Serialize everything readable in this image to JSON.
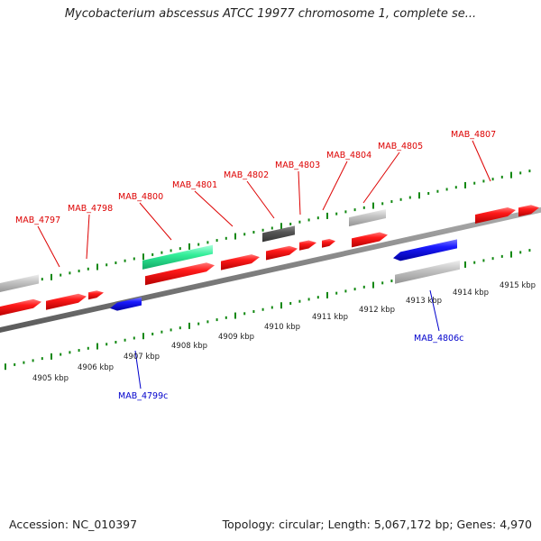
{
  "title": "Mycobacterium abscessus ATCC 19977 chromosome 1, complete se...",
  "footer": {
    "accession": "Accession: NC_010397",
    "topology": "Topology: circular; Length: 5,067,172 bp; Genes: 4,970"
  },
  "colors": {
    "forward_gene": "#ee1111",
    "reverse_gene": "#1111dd",
    "rna_feature": "#33ee99",
    "pseudo_dark": "#555555",
    "pseudo_light": "#bbbbbb",
    "backbone": "#808080",
    "ticks": "#118811",
    "forward_label": "#dd0000",
    "reverse_label": "#0000cc"
  },
  "scale_labels": [
    "4905 kbp",
    "4906 kbp",
    "4907 kbp",
    "4908 kbp",
    "4909 kbp",
    "4910 kbp",
    "4911 kbp",
    "4912 kbp",
    "4913 kbp",
    "4914 kbp",
    "4915 kbp"
  ],
  "gene_labels": {
    "forward": [
      "MAB_4797",
      "MAB_4798",
      "MAB_4800",
      "MAB_4801",
      "MAB_4802",
      "MAB_4803",
      "MAB_4804",
      "MAB_4805",
      "MAB_4807"
    ],
    "reverse": [
      "MAB_4799c",
      "MAB_4806c"
    ]
  }
}
